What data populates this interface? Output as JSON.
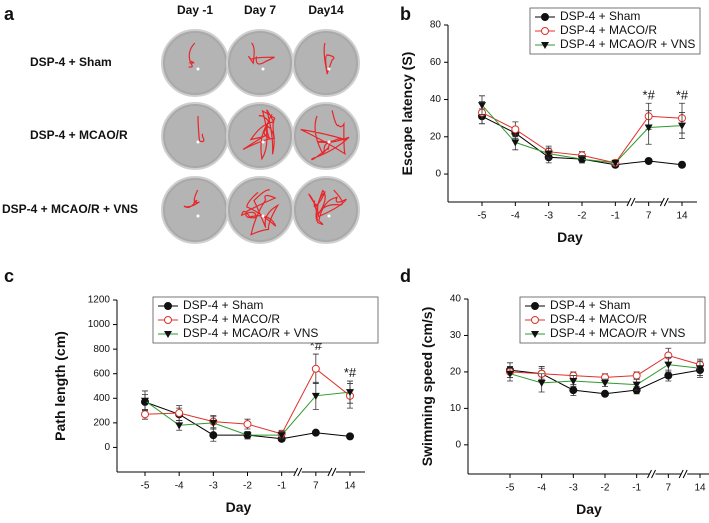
{
  "panel_a": {
    "label": "a",
    "columns": [
      "Day -1",
      "Day 7",
      "Day14"
    ],
    "rows": [
      "DSP-4 + Sham",
      "DSP-4 + MCAO/R",
      "DSP-4 + MCAO/R + VNS"
    ]
  },
  "chart_data": [
    {
      "type": "line",
      "panel_label": "b",
      "x_label": "Day",
      "y_label": "Escape latency (S)",
      "categories": [
        "-5",
        "-4",
        "-3",
        "-2",
        "-1",
        "7",
        "14"
      ],
      "ylim": [
        -15,
        80
      ],
      "yticks": [
        0,
        20,
        40,
        60,
        80
      ],
      "series": [
        {
          "name": "DSP-4 + Sham",
          "color": "#000000",
          "marker": "circle-filled",
          "values": [
            31,
            22,
            9,
            8,
            5,
            7,
            5
          ],
          "errors": [
            4,
            3,
            3,
            2,
            1,
            1,
            1
          ]
        },
        {
          "name": "DSP-4 + MACO/R",
          "color": "#e0302a",
          "marker": "circle-open",
          "values": [
            33,
            24,
            12,
            10,
            6,
            31,
            30
          ],
          "errors": [
            6,
            4,
            3,
            2,
            1,
            7,
            8
          ]
        },
        {
          "name": "DSP-4 + MCAO/R + VNS",
          "color": "#2e9a2e",
          "marker": "triangle-down",
          "values": [
            37,
            17,
            11,
            8,
            6,
            25,
            26
          ],
          "errors": [
            5,
            4,
            3,
            2,
            1,
            9,
            7
          ]
        }
      ],
      "annotations": [
        {
          "text": "*#",
          "x": "7"
        },
        {
          "text": "*#",
          "x": "14"
        }
      ]
    },
    {
      "type": "line",
      "panel_label": "c",
      "x_label": "Day",
      "y_label": "Path length (cm)",
      "categories": [
        "-5",
        "-4",
        "-3",
        "-2",
        "-1",
        "7",
        "14"
      ],
      "ylim": [
        -200,
        1200
      ],
      "yticks": [
        0,
        200,
        400,
        600,
        800,
        1000,
        1200
      ],
      "series": [
        {
          "name": "DSP-4 + Sham",
          "color": "#000000",
          "marker": "circle-filled",
          "values": [
            370,
            270,
            100,
            100,
            70,
            120,
            90
          ],
          "errors": [
            60,
            50,
            50,
            30,
            20,
            15,
            20
          ]
        },
        {
          "name": "DSP-4 + MACO/R",
          "color": "#e0302a",
          "marker": "circle-open",
          "values": [
            270,
            280,
            210,
            190,
            110,
            640,
            420
          ],
          "errors": [
            40,
            60,
            50,
            40,
            30,
            120,
            100
          ]
        },
        {
          "name": "DSP-4 + MCAO/R + VNS",
          "color": "#2e9a2e",
          "marker": "triangle-down",
          "values": [
            380,
            180,
            200,
            100,
            100,
            420,
            450
          ],
          "errors": [
            80,
            40,
            50,
            30,
            30,
            110,
            90
          ]
        }
      ],
      "annotations": [
        {
          "text": "*#",
          "x": "7"
        },
        {
          "text": "*#",
          "x": "14"
        }
      ]
    },
    {
      "type": "line",
      "panel_label": "d",
      "x_label": "Day",
      "y_label": "Swimming speed (cm/s)",
      "categories": [
        "-5",
        "-4",
        "-3",
        "-2",
        "-1",
        "7",
        "14"
      ],
      "ylim": [
        -8,
        40
      ],
      "yticks": [
        0,
        10,
        20,
        30,
        40
      ],
      "series": [
        {
          "name": "DSP-4 + Sham",
          "color": "#000000",
          "marker": "circle-filled",
          "values": [
            20.5,
            19.5,
            15,
            14,
            15,
            19,
            20.5
          ],
          "errors": [
            2,
            2,
            1.5,
            0.5,
            1,
            1.5,
            2
          ]
        },
        {
          "name": "DSP-4 + MACO/R",
          "color": "#e0302a",
          "marker": "circle-open",
          "values": [
            20,
            19.5,
            19,
            18.5,
            19,
            24.5,
            22
          ],
          "errors": [
            1.5,
            1.5,
            1,
            1,
            1,
            2,
            1.5
          ]
        },
        {
          "name": "DSP-4 + MCAO/R + VNS",
          "color": "#2e9a2e",
          "marker": "triangle-down",
          "values": [
            19.5,
            17,
            17.5,
            17,
            16.5,
            22,
            21
          ],
          "errors": [
            2,
            2.5,
            1.5,
            1,
            1.5,
            2,
            2
          ]
        }
      ],
      "annotations": []
    }
  ]
}
